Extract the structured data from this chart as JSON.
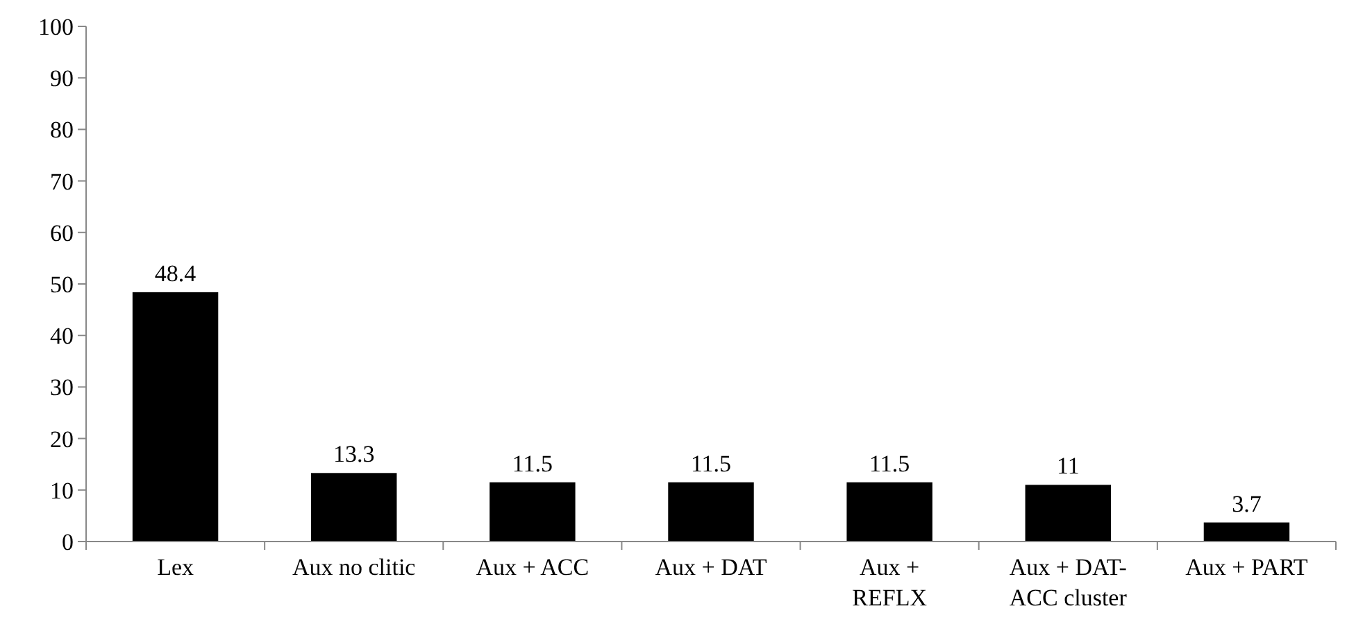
{
  "chart_data": {
    "type": "bar",
    "categories": [
      "Lex",
      "Aux no clitic",
      "Aux + ACC",
      "Aux + DAT",
      "Aux + REFLX",
      "Aux + DAT-ACC cluster",
      "Aux + PART"
    ],
    "values": [
      48.4,
      13.3,
      11.5,
      11.5,
      11.5,
      11,
      3.7
    ],
    "color": "#000000",
    "ylim": [
      0,
      100
    ],
    "yticks": [
      0,
      10,
      20,
      30,
      40,
      50,
      60,
      70,
      80,
      90,
      100
    ],
    "grid": false,
    "data_labels": true
  }
}
